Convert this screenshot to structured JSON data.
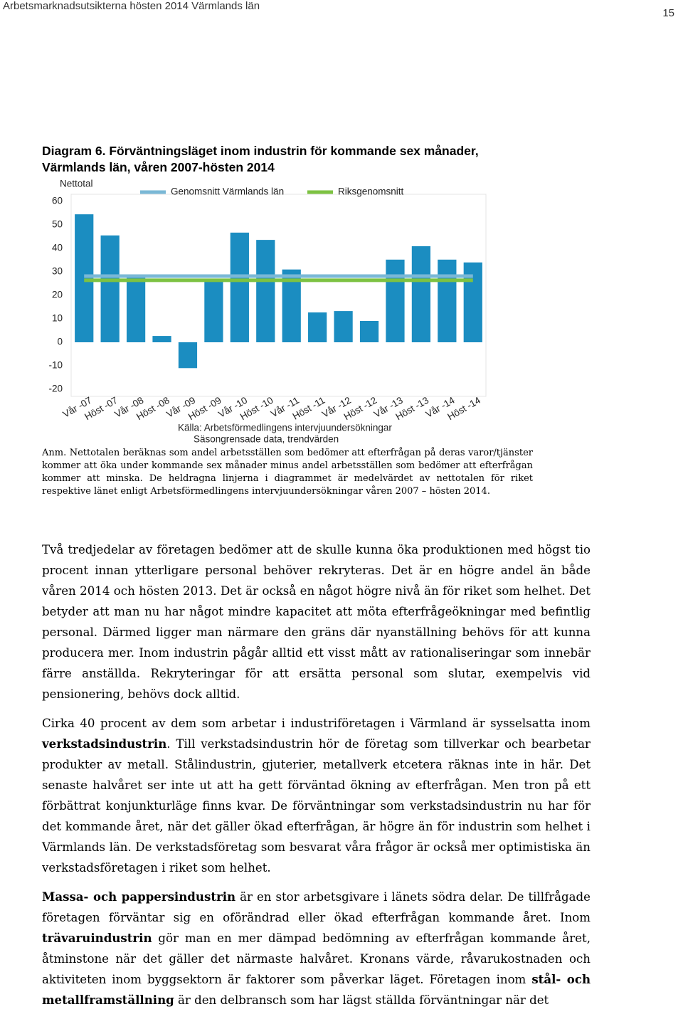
{
  "header": {
    "title": "Arbetsmarknadsutsikterna hösten 2014 Värmlands län",
    "page_number": "15"
  },
  "chart_data": {
    "type": "bar",
    "title_lines": [
      "Diagram 6. Förväntningsläget inom industrin för kommande sex månader,",
      "Värmlands län, våren 2007-hösten 2014"
    ],
    "ylabel": "Nettotal",
    "categories": [
      "Vår -07",
      "Höst -07",
      "Vår -08",
      "Höst -08",
      "Vår -09",
      "Höst -09",
      "Vår -10",
      "Höst -10",
      "Vår -11",
      "Höst -11",
      "Vår -12",
      "Höst -12",
      "Vår -13",
      "Höst -13",
      "Vår -14",
      "Höst -14"
    ],
    "values": [
      54.5,
      45.5,
      27.5,
      2.7,
      -11,
      26,
      46.7,
      43.6,
      31,
      12.7,
      13.3,
      9.1,
      35.2,
      40.9,
      35.2,
      34
    ],
    "color": "#1b8dc1",
    "series": [
      {
        "name": "Genomsnitt Värmlands län",
        "type": "line",
        "color": "#7ab8d6",
        "values": [
          28.2,
          28.2,
          28.2,
          28.2,
          28.2,
          28.2,
          28.2,
          28.2,
          28.2,
          28.2,
          28.2,
          28.2,
          28.2,
          28.2,
          28.2,
          28.2
        ]
      },
      {
        "name": "Riksgenomsnitt",
        "type": "line",
        "color": "#7dc242",
        "values": [
          26.4,
          26.4,
          26.4,
          26.4,
          26.4,
          26.4,
          26.4,
          26.4,
          26.4,
          26.4,
          26.4,
          26.4,
          26.4,
          26.4,
          26.4,
          26.4
        ]
      }
    ],
    "ylim": [
      -20,
      60
    ],
    "yticks": [
      -20,
      -10,
      0,
      10,
      20,
      30,
      40,
      50,
      60
    ],
    "grid": false,
    "source_lines": [
      "Källa: Arbetsförmedlingens intervjuundersökningar",
      "Säsongrensade data, trendvärden"
    ]
  },
  "note": "Anm. Nettotalen beräknas som andel arbetsställen som bedömer att efterfrågan på deras varor/tjänster kommer att öka under kommande sex månader minus andel arbetsställen som bedömer att efterfrågan kommer att minska. De heldragna linjerna i diagrammet är medelvärdet av nettotalen för riket respektive länet enligt Arbetsförmedlingens intervjuundersökningar våren 2007 – hösten 2014.",
  "paragraphs": [
    [
      {
        "text": "Två tredjedelar av företagen bedömer att de skulle kunna öka produktionen med högst tio procent innan ytterligare personal behöver rekryteras. Det är en högre andel än både våren 2014 och hösten 2013. Det är också en något högre nivå än för riket som helhet. Det betyder att man nu har något mindre kapacitet att möta efterfrågeökningar med befintlig personal. Därmed ligger man närmare den gräns där nyanställning behövs för att kunna producera mer. Inom industrin pågår alltid ett visst mått av rationaliseringar som innebär färre anställda. Rekryteringar för att ersätta personal som slutar, exempelvis vid pensionering, behövs dock alltid."
      }
    ],
    [
      {
        "text": "Cirka 40 procent av dem som arbetar i industriföretagen i Värmland är sysselsatta inom "
      },
      {
        "text": "verkstadsindustrin",
        "bold": true
      },
      {
        "text": ". Till verkstadsindustrin hör de företag som tillverkar och bearbetar produkter av metall. Stålindustrin, gjuterier, metallverk etcetera räknas inte in här. Det senaste halvåret ser inte ut att ha gett förväntad ökning av efterfrågan. Men tron på ett förbättrat konjunkturläge finns kvar. De förväntningar som verkstadsindustrin nu har för det kommande året, när det gäller ökad efterfrågan, är högre än för industrin som helhet i Värmlands län. De verkstadsföretag som besvarat våra frågor är också mer optimistiska än verkstadsföretagen i riket som helhet."
      }
    ],
    [
      {
        "text": "Massa- och pappersindustrin",
        "bold": true
      },
      {
        "text": " är en stor arbetsgivare i länets södra delar. De tillfrågade företagen förväntar sig en oförändrad eller ökad efterfrågan kommande året. Inom "
      },
      {
        "text": "trävaruindustrin",
        "bold": true
      },
      {
        "text": " gör man en mer dämpad bedömning av efterfrågan kommande året, åtminstone när det gäller det närmaste halvåret. Kronans värde, råvarukostnaden och aktiviteten inom byggsektorn är faktorer som påverkar läget. Företagen inom "
      },
      {
        "text": "stål- och metallframställning",
        "bold": true
      },
      {
        "text": " är den delbransch som har lägst ställda förväntningar när det"
      }
    ]
  ]
}
